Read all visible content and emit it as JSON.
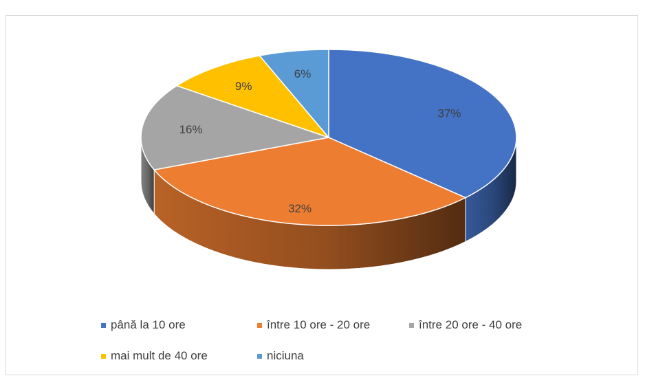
{
  "chart_data": {
    "type": "pie",
    "style": "3d",
    "labels": [
      "până la 10 ore",
      "între 10 ore - 20 ore",
      "între 20 ore - 40 ore",
      "mai mult de 40 ore",
      "niciuna"
    ],
    "values": [
      37,
      32,
      16,
      9,
      6
    ],
    "data_labels": [
      "37%",
      "32%",
      "16%",
      "9%",
      "6%"
    ],
    "colors": [
      "#4472C4",
      "#ED7D31",
      "#A5A5A5",
      "#FFC000",
      "#5B9BD5"
    ],
    "legend_position": "bottom",
    "title": ""
  }
}
